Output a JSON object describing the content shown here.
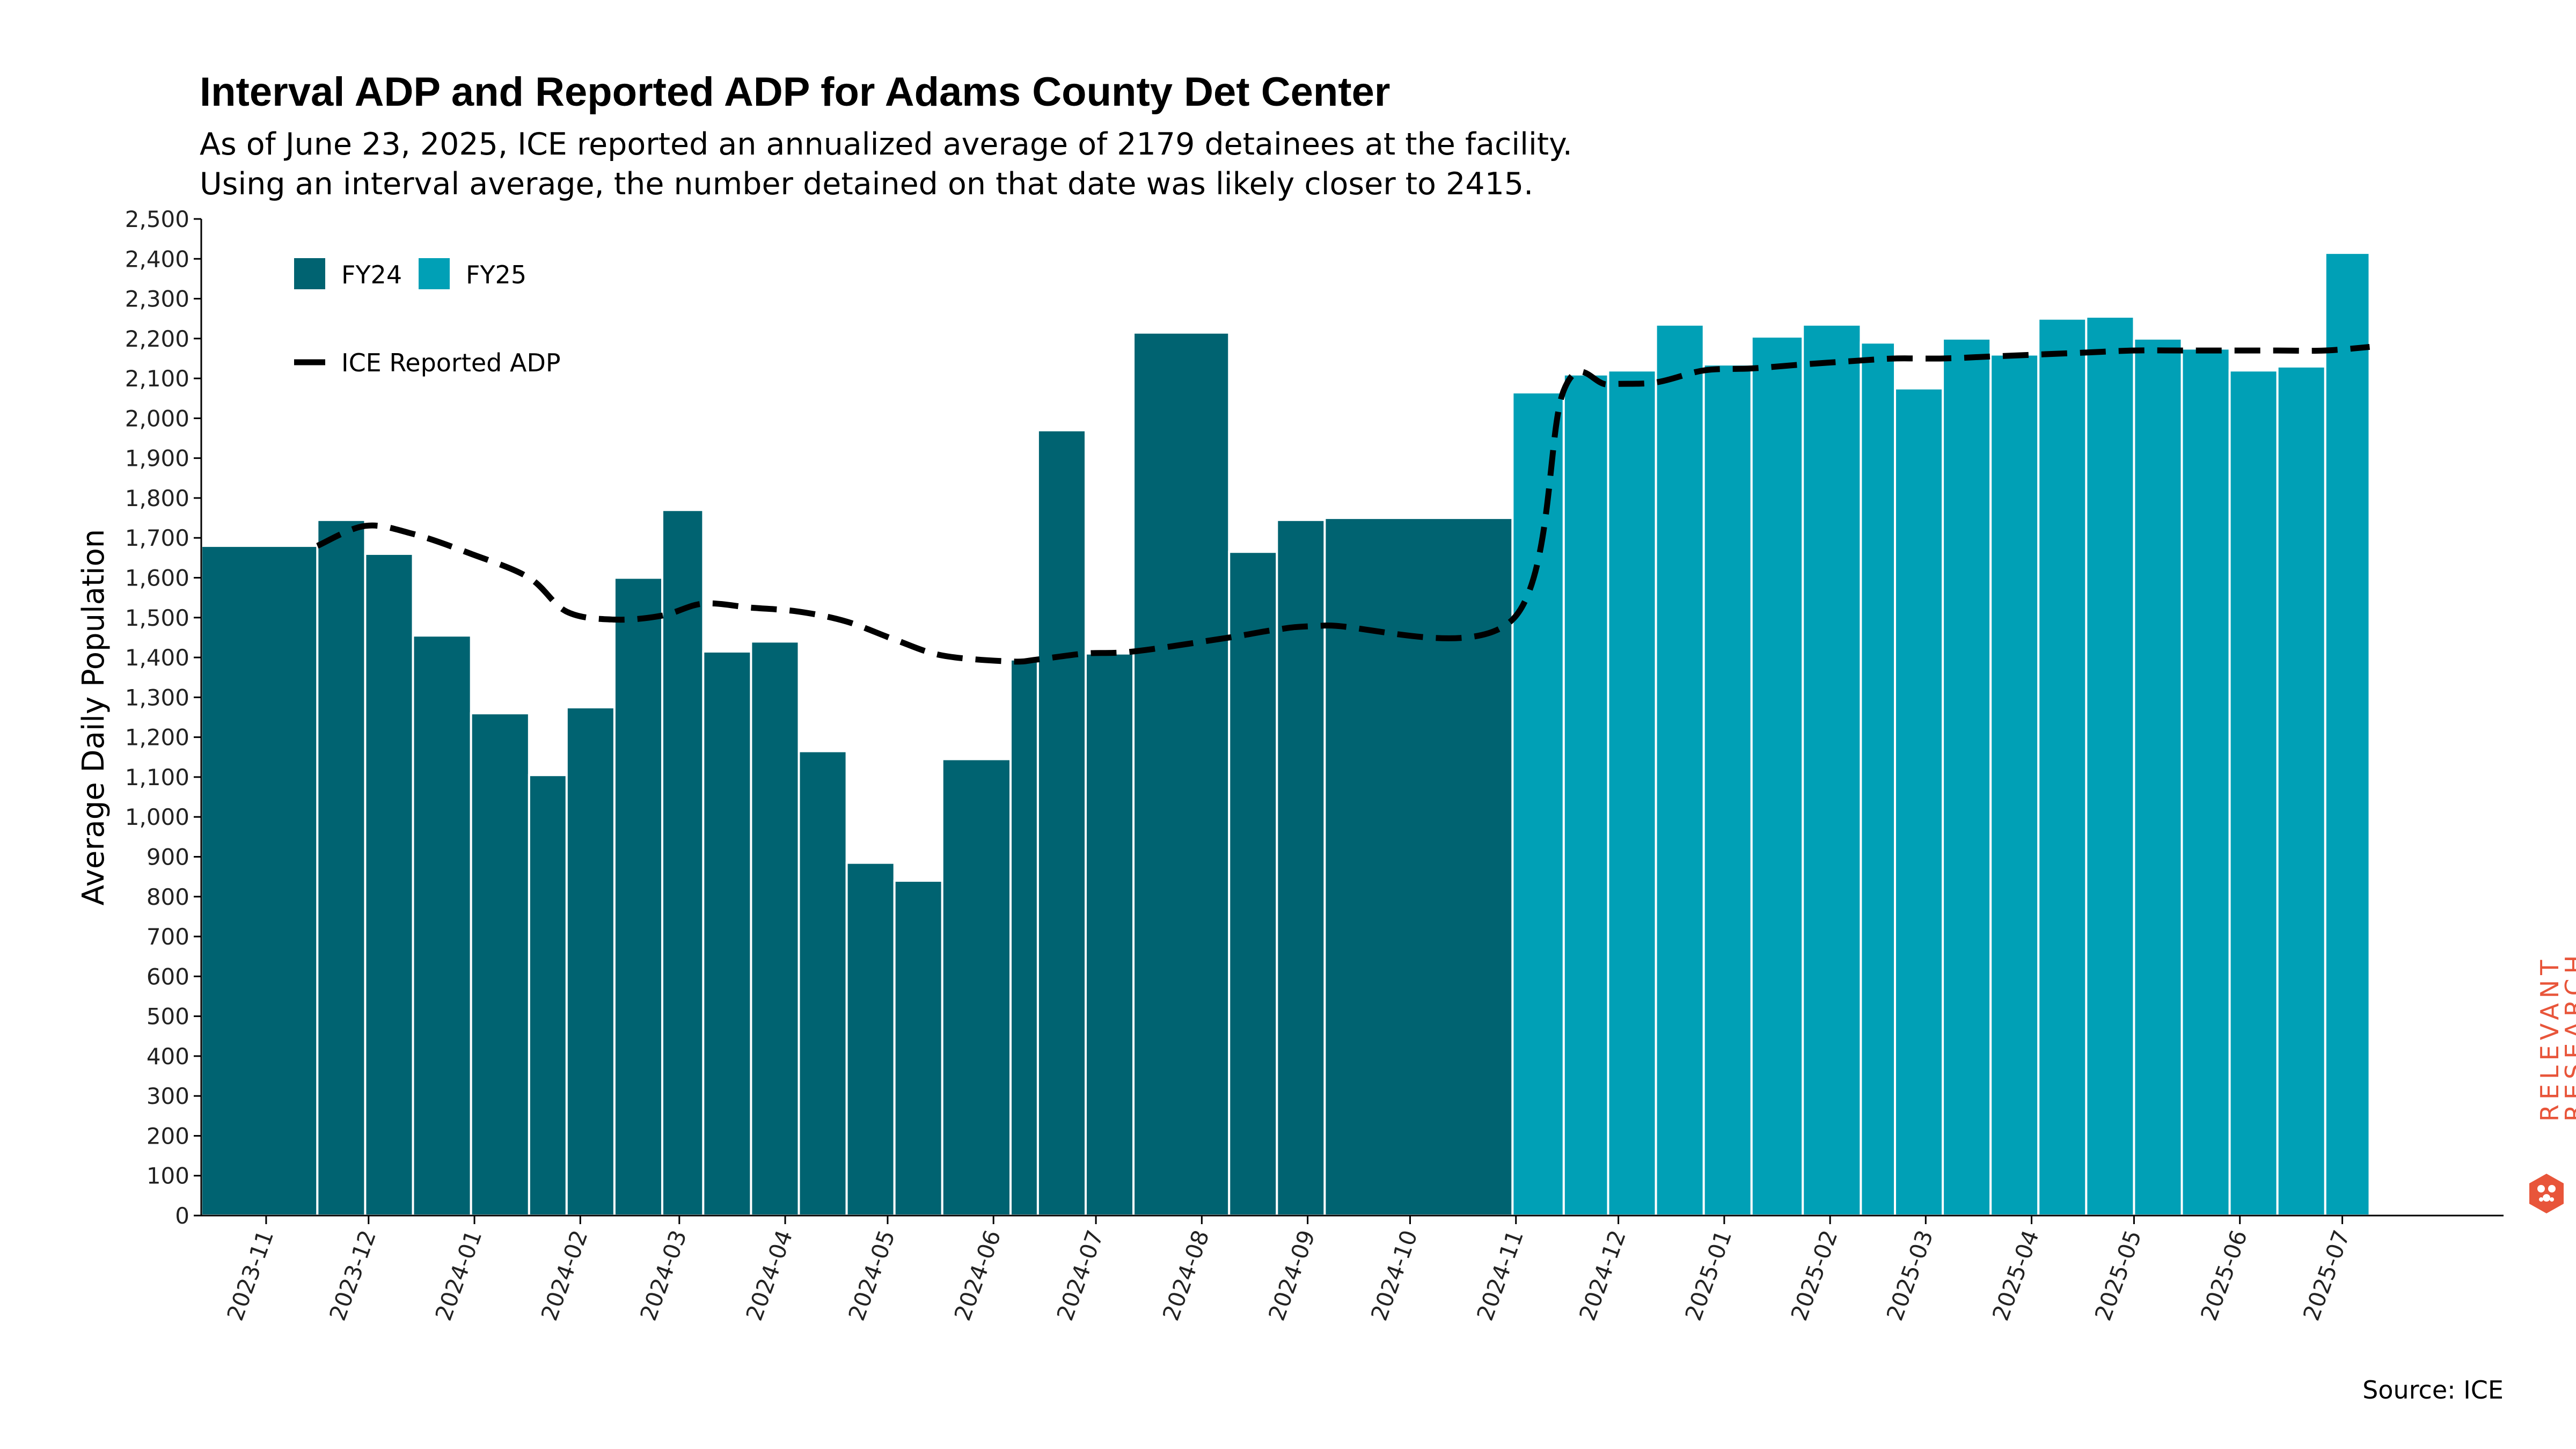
{
  "title": "Interval ADP and Reported ADP for Adams County Det Center",
  "subtitle": [
    "As of June 23, 2025, ICE reported an annualized average of 2179 detainees at the facility.",
    "Using an interval average, the number detained on that date was likely closer to 2415."
  ],
  "source": "Source: ICE",
  "brand": {
    "line1": "RELEVANT",
    "line2": "RESEARCH",
    "color": "#e8553a",
    "icon": "hexagon-logo-icon"
  },
  "colors": {
    "fy24": "#006371",
    "fy25": "#00a0b6",
    "line": "#000000"
  },
  "chart_data": {
    "type": "bar",
    "ylabel": "Average Daily Population",
    "ylim": [
      0,
      2500
    ],
    "yticks": [
      0,
      100,
      200,
      300,
      400,
      500,
      600,
      700,
      800,
      900,
      1000,
      1100,
      1200,
      1300,
      1400,
      1500,
      1600,
      1700,
      1800,
      1900,
      2000,
      2100,
      2200,
      2300,
      2400,
      2500
    ],
    "xlim": [
      "2023-10-13",
      "2025-07-27"
    ],
    "xticks": [
      "2023-11",
      "2023-12",
      "2024-01",
      "2024-02",
      "2024-03",
      "2024-04",
      "2024-05",
      "2024-06",
      "2024-07",
      "2024-08",
      "2024-09",
      "2024-10",
      "2024-11",
      "2024-12",
      "2025-01",
      "2025-02",
      "2025-03",
      "2025-04",
      "2025-05",
      "2025-06",
      "2025-07"
    ],
    "legend": {
      "position": "top-left",
      "entries": [
        "FY24",
        "FY25",
        "ICE Reported ADP"
      ]
    },
    "series": [
      {
        "name": "FY24",
        "bars": [
          {
            "start": "2023-10-13",
            "end": "2023-11-16",
            "value": 1680
          },
          {
            "start": "2023-11-16",
            "end": "2023-11-30",
            "value": 1745
          },
          {
            "start": "2023-11-30",
            "end": "2023-12-14",
            "value": 1660
          },
          {
            "start": "2023-12-14",
            "end": "2023-12-31",
            "value": 1455
          },
          {
            "start": "2023-12-31",
            "end": "2024-01-17",
            "value": 1260
          },
          {
            "start": "2024-01-17",
            "end": "2024-01-28",
            "value": 1105
          },
          {
            "start": "2024-01-28",
            "end": "2024-02-11",
            "value": 1275
          },
          {
            "start": "2024-02-11",
            "end": "2024-02-25",
            "value": 1600
          },
          {
            "start": "2024-02-25",
            "end": "2024-03-08",
            "value": 1770
          },
          {
            "start": "2024-03-08",
            "end": "2024-03-22",
            "value": 1415
          },
          {
            "start": "2024-03-22",
            "end": "2024-04-05",
            "value": 1440
          },
          {
            "start": "2024-04-05",
            "end": "2024-04-19",
            "value": 1165
          },
          {
            "start": "2024-04-19",
            "end": "2024-05-03",
            "value": 885
          },
          {
            "start": "2024-05-03",
            "end": "2024-05-17",
            "value": 840
          },
          {
            "start": "2024-05-17",
            "end": "2024-06-06",
            "value": 1145
          },
          {
            "start": "2024-06-06",
            "end": "2024-06-14",
            "value": 1395
          },
          {
            "start": "2024-06-14",
            "end": "2024-06-28",
            "value": 1970
          },
          {
            "start": "2024-06-28",
            "end": "2024-07-12",
            "value": 1410
          },
          {
            "start": "2024-07-12",
            "end": "2024-08-09",
            "value": 2215
          },
          {
            "start": "2024-08-09",
            "end": "2024-08-23",
            "value": 1665
          },
          {
            "start": "2024-08-23",
            "end": "2024-09-06",
            "value": 1745
          },
          {
            "start": "2024-09-06",
            "end": "2024-10-31",
            "value": 1750
          }
        ]
      },
      {
        "name": "FY25",
        "bars": [
          {
            "start": "2024-10-31",
            "end": "2024-11-15",
            "value": 2065
          },
          {
            "start": "2024-11-15",
            "end": "2024-11-28",
            "value": 2110
          },
          {
            "start": "2024-11-28",
            "end": "2024-12-12",
            "value": 2120
          },
          {
            "start": "2024-12-12",
            "end": "2024-12-26",
            "value": 2235
          },
          {
            "start": "2024-12-26",
            "end": "2025-01-09",
            "value": 2135
          },
          {
            "start": "2025-01-09",
            "end": "2025-01-24",
            "value": 2205
          },
          {
            "start": "2025-01-24",
            "end": "2025-02-10",
            "value": 2235
          },
          {
            "start": "2025-02-10",
            "end": "2025-02-20",
            "value": 2190
          },
          {
            "start": "2025-02-20",
            "end": "2025-03-06",
            "value": 2075
          },
          {
            "start": "2025-03-06",
            "end": "2025-03-20",
            "value": 2200
          },
          {
            "start": "2025-03-20",
            "end": "2025-04-03",
            "value": 2160
          },
          {
            "start": "2025-04-03",
            "end": "2025-04-17",
            "value": 2250
          },
          {
            "start": "2025-04-17",
            "end": "2025-05-01",
            "value": 2255
          },
          {
            "start": "2025-05-01",
            "end": "2025-05-15",
            "value": 2200
          },
          {
            "start": "2025-05-15",
            "end": "2025-05-29",
            "value": 2175
          },
          {
            "start": "2025-05-29",
            "end": "2025-06-12",
            "value": 2120
          },
          {
            "start": "2025-06-12",
            "end": "2025-06-26",
            "value": 2130
          },
          {
            "start": "2025-06-26",
            "end": "2025-07-09",
            "value": 2415
          }
        ]
      },
      {
        "name": "ICE Reported ADP",
        "type": "line",
        "style": "dashed",
        "points": [
          {
            "x": "2023-11-16",
            "y": 1680
          },
          {
            "x": "2023-11-30",
            "y": 1730
          },
          {
            "x": "2023-12-14",
            "y": 1710
          },
          {
            "x": "2023-12-31",
            "y": 1660
          },
          {
            "x": "2024-01-17",
            "y": 1600
          },
          {
            "x": "2024-01-28",
            "y": 1515
          },
          {
            "x": "2024-02-11",
            "y": 1495
          },
          {
            "x": "2024-02-25",
            "y": 1505
          },
          {
            "x": "2024-03-08",
            "y": 1535
          },
          {
            "x": "2024-03-22",
            "y": 1525
          },
          {
            "x": "2024-04-05",
            "y": 1515
          },
          {
            "x": "2024-04-19",
            "y": 1490
          },
          {
            "x": "2024-05-03",
            "y": 1445
          },
          {
            "x": "2024-05-17",
            "y": 1405
          },
          {
            "x": "2024-06-06",
            "y": 1390
          },
          {
            "x": "2024-06-14",
            "y": 1395
          },
          {
            "x": "2024-06-28",
            "y": 1410
          },
          {
            "x": "2024-07-12",
            "y": 1415
          },
          {
            "x": "2024-08-09",
            "y": 1450
          },
          {
            "x": "2024-08-23",
            "y": 1470
          },
          {
            "x": "2024-09-06",
            "y": 1480
          },
          {
            "x": "2024-10-31",
            "y": 1495
          },
          {
            "x": "2024-11-15",
            "y": 2070
          },
          {
            "x": "2024-11-28",
            "y": 2085
          },
          {
            "x": "2024-12-12",
            "y": 2090
          },
          {
            "x": "2024-12-26",
            "y": 2120
          },
          {
            "x": "2025-01-09",
            "y": 2125
          },
          {
            "x": "2025-01-24",
            "y": 2135
          },
          {
            "x": "2025-02-10",
            "y": 2145
          },
          {
            "x": "2025-02-20",
            "y": 2150
          },
          {
            "x": "2025-03-06",
            "y": 2150
          },
          {
            "x": "2025-03-20",
            "y": 2155
          },
          {
            "x": "2025-04-03",
            "y": 2160
          },
          {
            "x": "2025-04-17",
            "y": 2165
          },
          {
            "x": "2025-05-01",
            "y": 2170
          },
          {
            "x": "2025-05-15",
            "y": 2170
          },
          {
            "x": "2025-05-29",
            "y": 2170
          },
          {
            "x": "2025-06-12",
            "y": 2170
          },
          {
            "x": "2025-06-26",
            "y": 2170
          },
          {
            "x": "2025-07-09",
            "y": 2179
          }
        ]
      }
    ]
  }
}
